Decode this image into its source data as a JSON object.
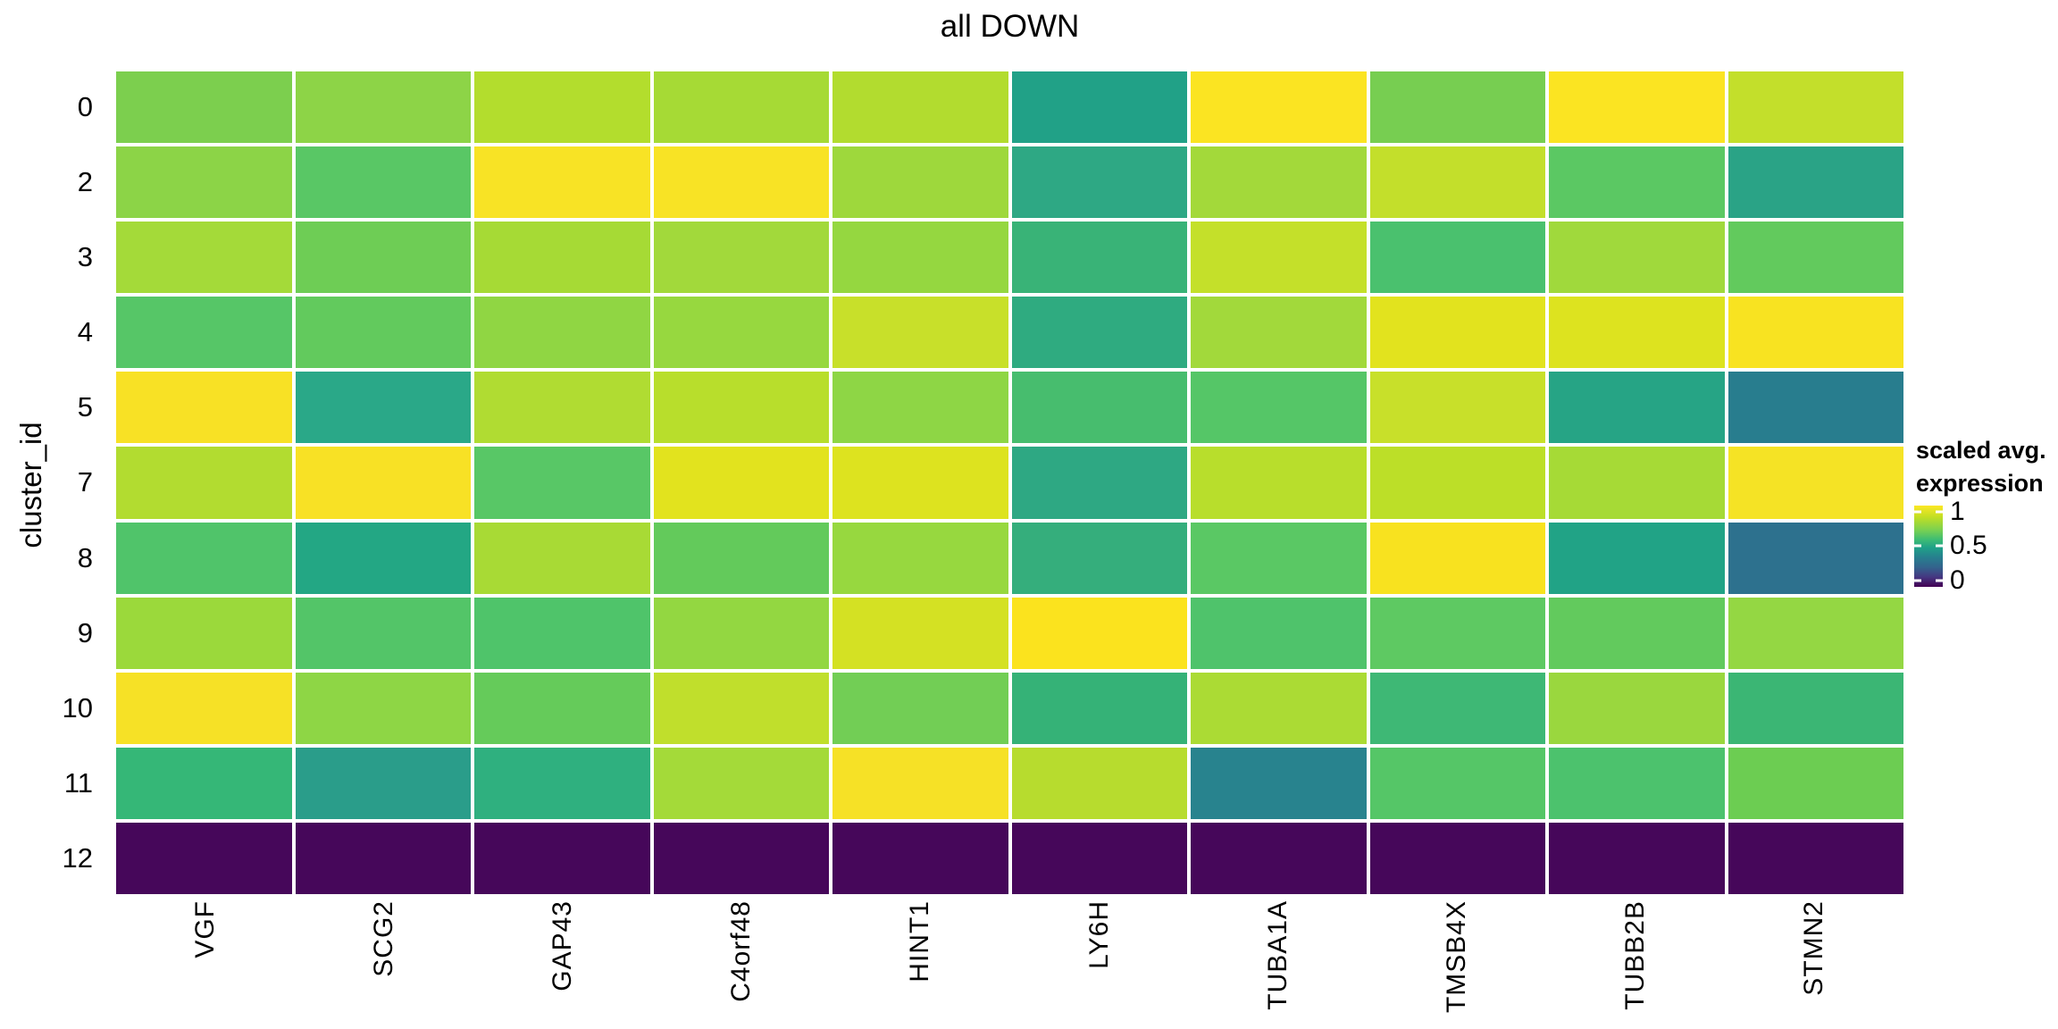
{
  "page": {
    "title": "all DOWN"
  },
  "y_axis": {
    "title": "cluster_id"
  },
  "legend": {
    "title_line1": "scaled avg.",
    "title_line2": "expression",
    "tick_labels": [
      "1",
      "0.5",
      "0"
    ]
  },
  "chart_data": {
    "type": "heatmap",
    "title": "all DOWN",
    "xlabel": "",
    "ylabel": "cluster_id",
    "colormap": "viridis",
    "legend_title": "scaled avg. expression",
    "scale_range": [
      0,
      1
    ],
    "legend_ticks": [
      1,
      0.5,
      0
    ],
    "x_categories": [
      "VGF",
      "SCG2",
      "GAP43",
      "C4orf48",
      "HINT1",
      "LY6H",
      "TUBA1A",
      "TMSB4X",
      "TUBB2B",
      "STMN2"
    ],
    "y_categories": [
      "0",
      "2",
      "3",
      "4",
      "5",
      "7",
      "8",
      "9",
      "10",
      "11",
      "12"
    ],
    "values": [
      [
        0.72,
        0.74,
        0.8,
        0.78,
        0.79,
        0.55,
        0.96,
        0.71,
        0.96,
        0.82
      ],
      [
        0.74,
        0.67,
        0.94,
        0.94,
        0.77,
        0.57,
        0.78,
        0.82,
        0.68,
        0.56
      ],
      [
        0.78,
        0.7,
        0.78,
        0.78,
        0.76,
        0.6,
        0.83,
        0.64,
        0.78,
        0.69
      ],
      [
        0.66,
        0.69,
        0.75,
        0.76,
        0.83,
        0.58,
        0.78,
        0.88,
        0.87,
        0.95
      ],
      [
        0.94,
        0.57,
        0.79,
        0.8,
        0.75,
        0.63,
        0.66,
        0.83,
        0.56,
        0.43
      ],
      [
        0.79,
        0.94,
        0.67,
        0.88,
        0.87,
        0.57,
        0.8,
        0.81,
        0.78,
        0.93
      ],
      [
        0.65,
        0.56,
        0.78,
        0.69,
        0.76,
        0.59,
        0.67,
        0.94,
        0.55,
        0.4
      ],
      [
        0.77,
        0.66,
        0.65,
        0.76,
        0.85,
        0.95,
        0.65,
        0.68,
        0.69,
        0.76
      ],
      [
        0.93,
        0.75,
        0.7,
        0.82,
        0.71,
        0.6,
        0.79,
        0.61,
        0.76,
        0.61
      ],
      [
        0.6,
        0.53,
        0.58,
        0.78,
        0.93,
        0.81,
        0.45,
        0.66,
        0.64,
        0.7
      ],
      [
        0.02,
        0.02,
        0.02,
        0.02,
        0.02,
        0.02,
        0.02,
        0.02,
        0.02,
        0.02
      ]
    ],
    "cell_colors": [
      [
        "#7ccf4e",
        "#8dd447",
        "#b3dd2d",
        "#a6da35",
        "#b2dc2f",
        "#21a187",
        "#fbe422",
        "#77ce51",
        "#fbe422",
        "#c3df2b"
      ],
      [
        "#8cd447",
        "#59c765",
        "#f8e325",
        "#f8e325",
        "#9ed83c",
        "#2ea884",
        "#a3d93a",
        "#c3df2b",
        "#5bc863",
        "#2aa386"
      ],
      [
        "#a4da39",
        "#6ecd55",
        "#a6da35",
        "#a2d93b",
        "#95d740",
        "#39b377",
        "#c4e02a",
        "#4ac16e",
        "#a0d93c",
        "#62ca5d"
      ],
      [
        "#56c667",
        "#62ca5d",
        "#90d643",
        "#97d83f",
        "#c8e02a",
        "#2fab80",
        "#a2d93b",
        "#e2e31e",
        "#dde31f",
        "#f8e321"
      ],
      [
        "#f8e125",
        "#2aa888",
        "#b0dc32",
        "#b8de2c",
        "#8ed645",
        "#47bd6e",
        "#55c667",
        "#c8e02a",
        "#26a485",
        "#287d8e"
      ],
      [
        "#b2dc30",
        "#f8e125",
        "#58c766",
        "#e2e31e",
        "#dde31f",
        "#2ea883",
        "#b8de2c",
        "#bcdf28",
        "#a6da36",
        "#f5e325"
      ],
      [
        "#50c46a",
        "#23a784",
        "#a8da35",
        "#63ca5b",
        "#97d83f",
        "#35ae7c",
        "#5ac864",
        "#f8e21f",
        "#21a386",
        "#2d718e"
      ],
      [
        "#9bd93b",
        "#53c568",
        "#4fc46a",
        "#93d741",
        "#d4e123",
        "#fbe31e",
        "#4fc36b",
        "#5ec962",
        "#62ca5d",
        "#94d743"
      ],
      [
        "#f6e126",
        "#8ed645",
        "#65cb5a",
        "#c0df2c",
        "#72ce55",
        "#35b277",
        "#abdb34",
        "#3eb875",
        "#9ad73e",
        "#3bb674"
      ],
      [
        "#35b777",
        "#2a9d8a",
        "#2fb07f",
        "#a4da39",
        "#f6e126",
        "#b7dc2e",
        "#28838e",
        "#55c667",
        "#4cc26d",
        "#6ccd52"
      ],
      [
        "#46075a",
        "#46075a",
        "#46075a",
        "#46075a",
        "#46075a",
        "#46075a",
        "#46075a",
        "#46075a",
        "#46075a",
        "#46075a"
      ]
    ]
  }
}
